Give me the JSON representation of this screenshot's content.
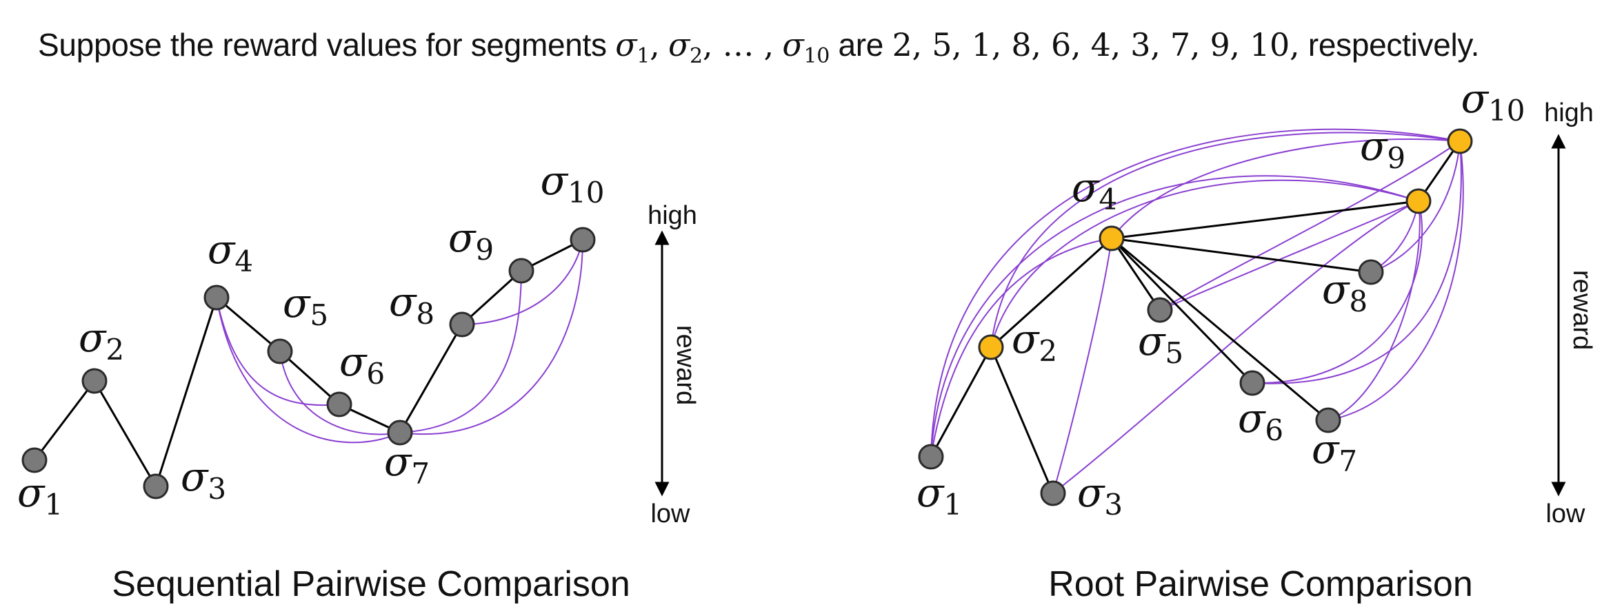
{
  "header": {
    "prefix": "Suppose the reward values for segments",
    "seg_first": "σ",
    "seg_first_sub": "1",
    "seg_second": "σ",
    "seg_second_sub": "2",
    "seg_dots": ", … ,",
    "seg_last": "σ",
    "seg_last_sub": "10",
    "verb": "are",
    "values_text": "2, 5, 1, 8, 6, 4, 3, 7, 9, 10,",
    "suffix": "respectively."
  },
  "colors": {
    "grey_node": "#7a7a7a",
    "orange_node": "#fbb917",
    "black_edge": "#000000",
    "purple_edge": "#8a3fd1"
  },
  "nodes": [
    {
      "id": 1,
      "label": "σ",
      "sub": "1",
      "reward": 2
    },
    {
      "id": 2,
      "label": "σ",
      "sub": "2",
      "reward": 5
    },
    {
      "id": 3,
      "label": "σ",
      "sub": "3",
      "reward": 1
    },
    {
      "id": 4,
      "label": "σ",
      "sub": "4",
      "reward": 8
    },
    {
      "id": 5,
      "label": "σ",
      "sub": "5",
      "reward": 6
    },
    {
      "id": 6,
      "label": "σ",
      "sub": "6",
      "reward": 4
    },
    {
      "id": 7,
      "label": "σ",
      "sub": "7",
      "reward": 3
    },
    {
      "id": 8,
      "label": "σ",
      "sub": "8",
      "reward": 7
    },
    {
      "id": 9,
      "label": "σ",
      "sub": "9",
      "reward": 9
    },
    {
      "id": 10,
      "label": "σ",
      "sub": "10",
      "reward": 10
    }
  ],
  "panels": {
    "sequential": {
      "title": "Sequential Pairwise Comparison",
      "highlight_nodes": [],
      "black_edges": [
        [
          1,
          2
        ],
        [
          2,
          3
        ],
        [
          3,
          4
        ],
        [
          4,
          5
        ],
        [
          5,
          6
        ],
        [
          6,
          7
        ],
        [
          7,
          8
        ],
        [
          8,
          9
        ],
        [
          9,
          10
        ]
      ],
      "purple_edges": [
        [
          4,
          6
        ],
        [
          4,
          7
        ],
        [
          5,
          7
        ],
        [
          7,
          9
        ],
        [
          7,
          10
        ],
        [
          8,
          10
        ]
      ]
    },
    "root": {
      "title": "Root Pairwise Comparison",
      "highlight_nodes": [
        2,
        4,
        9,
        10
      ],
      "black_edges": [
        [
          1,
          2
        ],
        [
          2,
          3
        ],
        [
          2,
          4
        ],
        [
          4,
          5
        ],
        [
          4,
          6
        ],
        [
          4,
          7
        ],
        [
          4,
          8
        ],
        [
          4,
          9
        ],
        [
          9,
          10
        ]
      ],
      "purple_edges": [
        [
          1,
          4
        ],
        [
          1,
          9
        ],
        [
          1,
          10
        ],
        [
          2,
          9
        ],
        [
          2,
          10
        ],
        [
          3,
          4
        ],
        [
          3,
          9
        ],
        [
          4,
          10
        ],
        [
          5,
          9
        ],
        [
          5,
          10
        ],
        [
          6,
          9
        ],
        [
          6,
          10
        ],
        [
          7,
          9
        ],
        [
          7,
          10
        ],
        [
          8,
          9
        ],
        [
          8,
          10
        ]
      ]
    }
  },
  "axis": {
    "high": "high",
    "low": "low",
    "label": "reward"
  }
}
